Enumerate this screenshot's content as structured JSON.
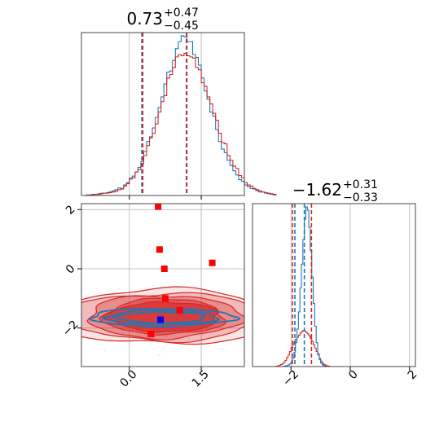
{
  "panels": {
    "top": {
      "title": {
        "median": "0.73",
        "plus": "+0.47",
        "minus": "−0.45"
      }
    },
    "diag": {
      "title": {
        "median": "−1.62",
        "plus": "+0.31",
        "minus": "−0.33"
      }
    }
  },
  "colors": {
    "blue": "#1f77b4",
    "red": "#d62728",
    "marker_red": "#ff0000",
    "marker_blue": "#0000ff",
    "grid": "#b0b0b0",
    "axis": "#444444"
  },
  "chart_data": {
    "type": "corner",
    "parameters": 2,
    "axes": {
      "x1_ticks": [
        {
          "value": 0.0,
          "label": "0.0"
        },
        {
          "value": 1.5,
          "label": "1.5"
        }
      ],
      "y2_ticks": [
        {
          "value": -2,
          "label": "−2"
        },
        {
          "value": 0,
          "label": "0"
        },
        {
          "value": 2,
          "label": "2"
        }
      ],
      "x2_ticks": [
        {
          "value": -2,
          "label": "−2"
        },
        {
          "value": 0,
          "label": "0"
        },
        {
          "value": 2,
          "label": "2"
        }
      ],
      "x1_range": [
        -1.0,
        2.4
      ],
      "x2_range": [
        -3.3,
        2.2
      ],
      "y2_range": [
        -3.3,
        2.2
      ],
      "grid": true
    },
    "marginal_x1": {
      "bins_start": -0.9,
      "bin_width": 0.06,
      "blue_counts": [
        1,
        1,
        2,
        2,
        3,
        4,
        4,
        5,
        6,
        8,
        10,
        13,
        12,
        18,
        22,
        30,
        33,
        40,
        48,
        58,
        75,
        92,
        100,
        115,
        133,
        150,
        168,
        190,
        210,
        212,
        230,
        250,
        262,
        272,
        270,
        262,
        262,
        240,
        235,
        222,
        200,
        178,
        164,
        142,
        135,
        112,
        92,
        79,
        73,
        60,
        51,
        42,
        35,
        27,
        24,
        18,
        15,
        12,
        11,
        8,
        6,
        6,
        4,
        3,
        2,
        1
      ],
      "red_counts": [
        0,
        1,
        1,
        2,
        2,
        3,
        4,
        4,
        5,
        6,
        7,
        10,
        11,
        16,
        20,
        28,
        30,
        40,
        44,
        54,
        68,
        85,
        98,
        106,
        122,
        142,
        160,
        170,
        200,
        206,
        218,
        236,
        240,
        238,
        242,
        238,
        236,
        234,
        218,
        214,
        192,
        186,
        168,
        156,
        140,
        128,
        106,
        90,
        88,
        68,
        60,
        50,
        46,
        34,
        30,
        22,
        18,
        16,
        12,
        10,
        8,
        6,
        5,
        4,
        3,
        2
      ],
      "blue_quantiles": [
        0.26,
        1.19
      ],
      "red_quantiles": [
        0.28,
        1.2
      ]
    },
    "marginal_x2": {
      "bins_start": -2.5,
      "bin_width": 0.05,
      "blue_counts": [
        0,
        0,
        0,
        0,
        0,
        1,
        2,
        3,
        5,
        8,
        14,
        24,
        42,
        70,
        110,
        160,
        230,
        300,
        372,
        432,
        468,
        458,
        408,
        340,
        262,
        185,
        118,
        70,
        38,
        20,
        10,
        5,
        2,
        1,
        0,
        0,
        0,
        0
      ],
      "red_counts": [
        1,
        2,
        4,
        6,
        8,
        12,
        18,
        26,
        34,
        44,
        56,
        64,
        72,
        80,
        86,
        92,
        98,
        102,
        106,
        104,
        100,
        96,
        90,
        82,
        74,
        64,
        54,
        44,
        34,
        24,
        16,
        10,
        6,
        4,
        2,
        1,
        0,
        0
      ],
      "blue_quantiles": [
        -1.87,
        -1.55
      ],
      "red_quantiles": [
        -1.95,
        -1.31
      ]
    },
    "joint": {
      "scatter_center": [
        0.73,
        -1.62
      ],
      "scatter_sd": [
        0.46,
        0.32
      ],
      "red_contours": [
        [
          1.15,
          0.5
        ],
        [
          1.25,
          0.6
        ],
        [
          1.6,
          0.72
        ],
        [
          2.0,
          0.8
        ],
        [
          2.35,
          0.92
        ]
      ],
      "blue_contours": [
        [
          0.92,
          0.18
        ],
        [
          1.15,
          0.24
        ],
        [
          1.5,
          0.3
        ]
      ],
      "red_markers": [
        [
          0.6,
          2.1
        ],
        [
          0.63,
          0.65
        ],
        [
          0.73,
          0.0
        ],
        [
          1.73,
          0.2
        ],
        [
          0.75,
          -1.0
        ],
        [
          1.05,
          -1.4
        ],
        [
          0.45,
          -2.2
        ]
      ],
      "blue_marker": [
        0.65,
        -1.72
      ]
    }
  }
}
